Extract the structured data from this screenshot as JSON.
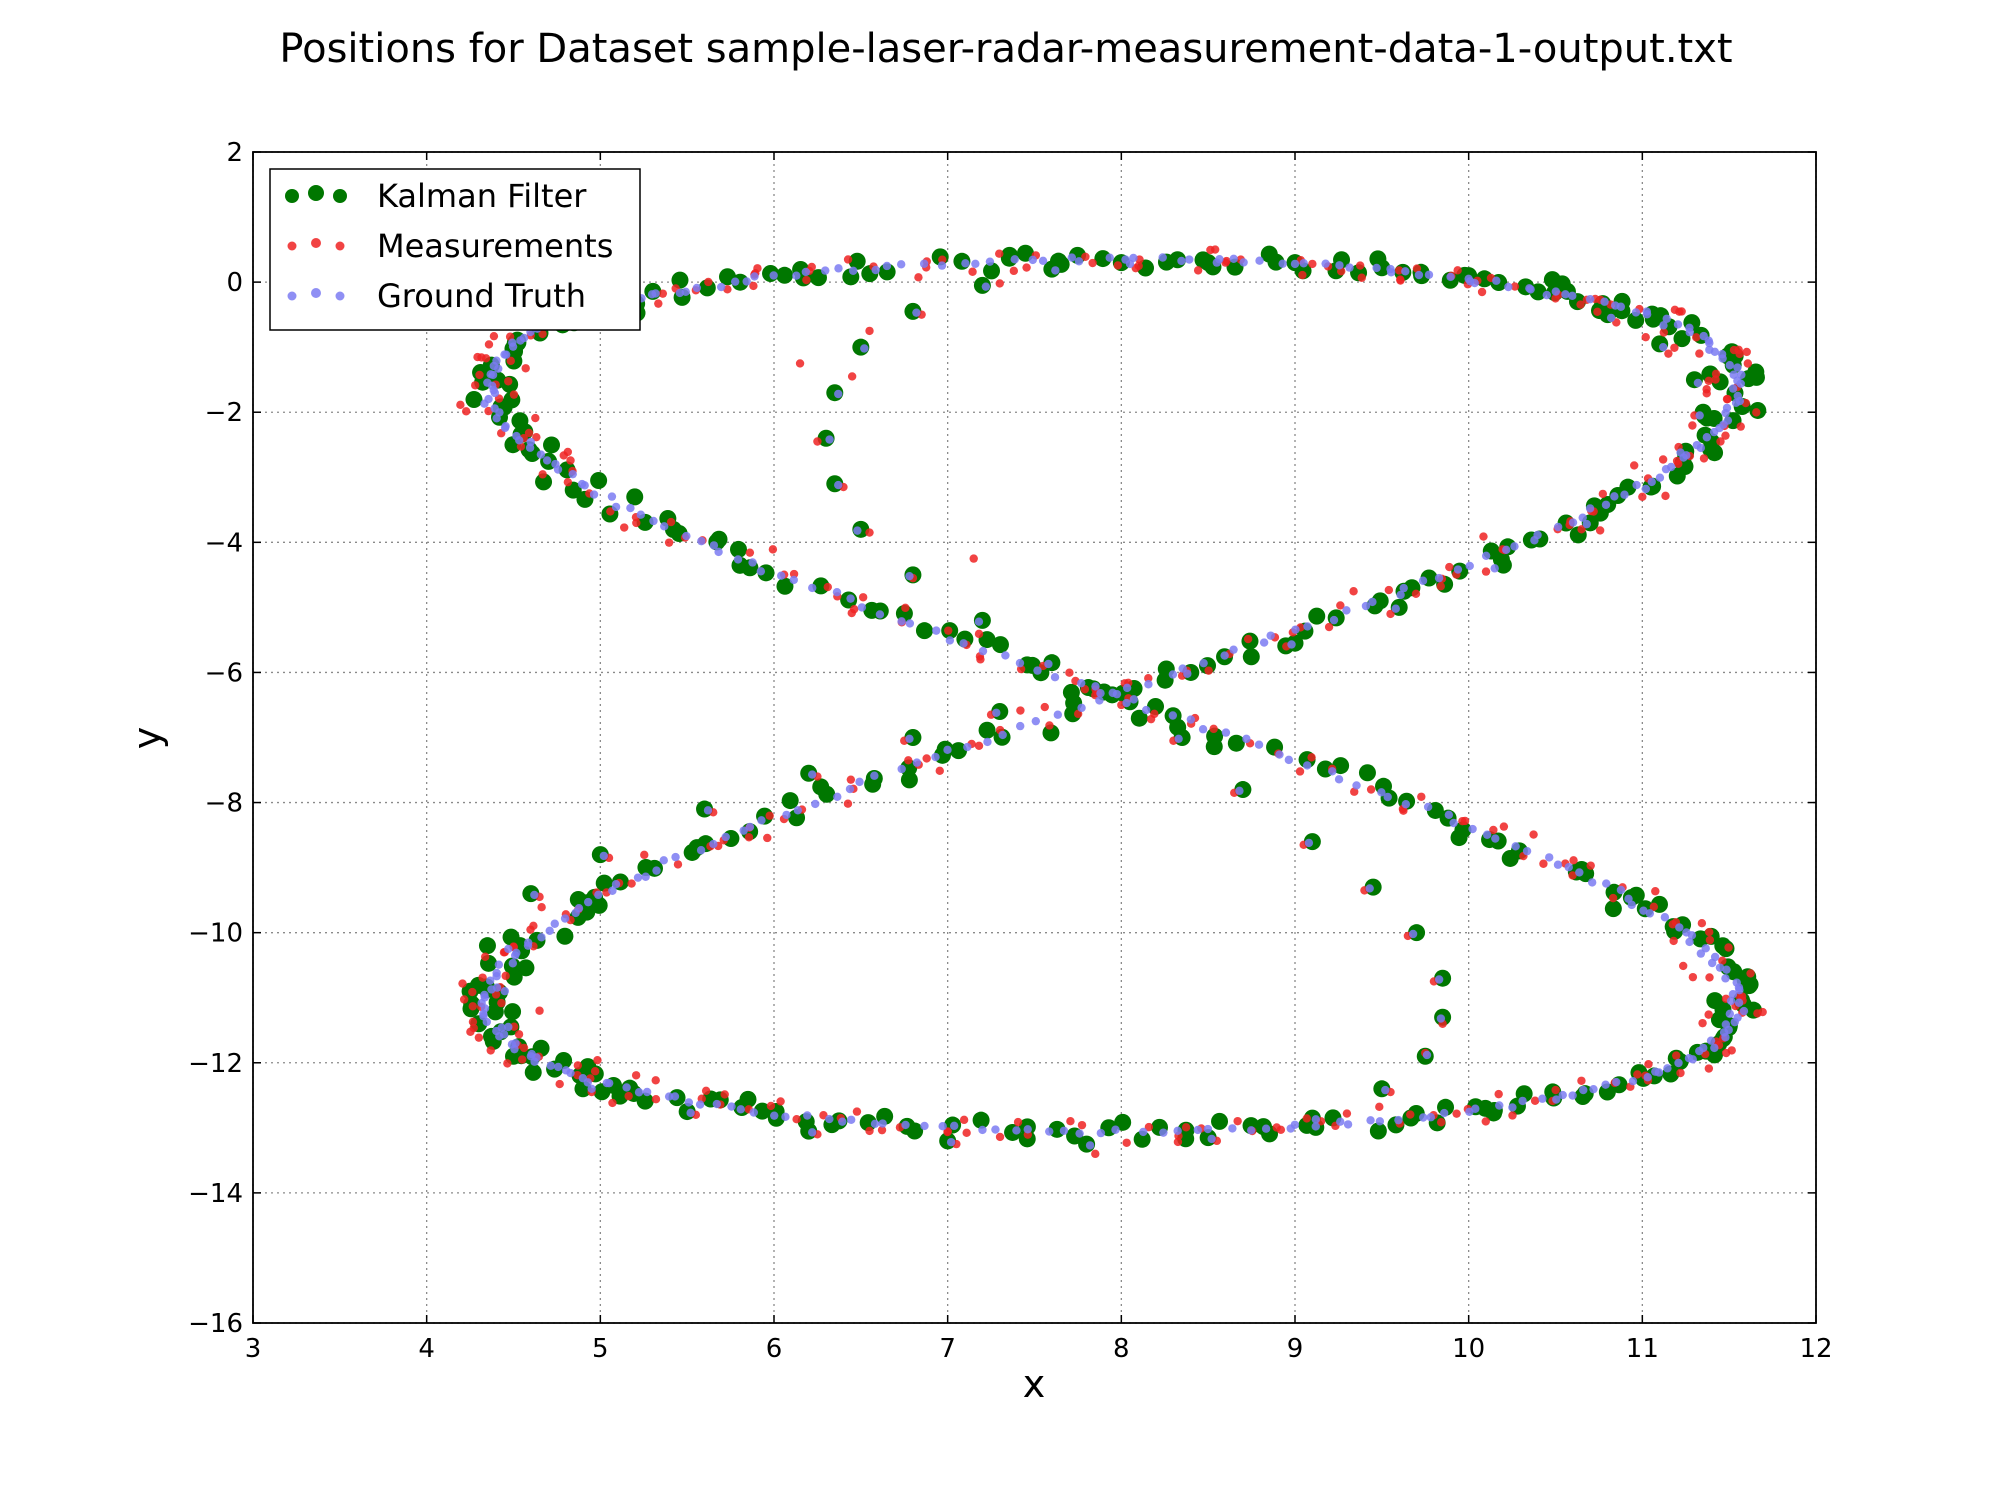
{
  "chart_data": {
    "type": "scatter",
    "title": "Positions for Dataset sample-laser-radar-measurement-data-1-output.txt",
    "xlabel": "x",
    "ylabel": "y",
    "xlim": [
      3,
      12
    ],
    "ylim": [
      -16,
      2
    ],
    "xticks": [
      3,
      4,
      5,
      6,
      7,
      8,
      9,
      10,
      11,
      12
    ],
    "yticks": [
      2,
      0,
      -2,
      -4,
      -6,
      -8,
      -10,
      -12,
      -14,
      -16
    ],
    "grid": true,
    "legend_position": "top-left",
    "curve": {
      "shape": "figure-eight",
      "center": [
        7.95,
        -6.35
      ],
      "x_amplitude": 3.6,
      "y_amplitude": 6.7,
      "dominant_side_x": "right-on-top"
    },
    "series": [
      {
        "name": "Kalman Filter",
        "color": "#007700",
        "marker": "circle-large",
        "points": [
          [
            8.0,
            0.3
          ],
          [
            8.5,
            0.3
          ],
          [
            9.0,
            0.3
          ],
          [
            9.5,
            0.22
          ],
          [
            10.0,
            0.1
          ],
          [
            10.4,
            -0.15
          ],
          [
            10.8,
            -0.5
          ],
          [
            11.1,
            -0.95
          ],
          [
            11.3,
            -1.5
          ],
          [
            11.35,
            -2.0
          ],
          [
            11.25,
            -2.6
          ],
          [
            11.05,
            -3.15
          ],
          [
            10.7,
            -3.7
          ],
          [
            10.2,
            -4.35
          ],
          [
            9.6,
            -5.0
          ],
          [
            9.0,
            -5.55
          ],
          [
            8.4,
            -6.0
          ],
          [
            7.9,
            -6.3
          ],
          [
            7.3,
            -6.6
          ],
          [
            6.8,
            -7.0
          ],
          [
            6.2,
            -7.55
          ],
          [
            5.6,
            -8.1
          ],
          [
            5.0,
            -8.8
          ],
          [
            4.6,
            -9.4
          ],
          [
            4.35,
            -10.2
          ],
          [
            4.25,
            -10.9
          ],
          [
            4.3,
            -11.4
          ],
          [
            4.5,
            -11.9
          ],
          [
            4.9,
            -12.4
          ],
          [
            5.5,
            -12.75
          ],
          [
            6.2,
            -13.05
          ],
          [
            7.0,
            -13.2
          ],
          [
            7.8,
            -13.25
          ],
          [
            8.5,
            -13.15
          ],
          [
            9.1,
            -12.85
          ],
          [
            9.5,
            -12.4
          ],
          [
            9.75,
            -11.9
          ],
          [
            9.85,
            -11.3
          ],
          [
            9.85,
            -10.7
          ],
          [
            9.7,
            -10.0
          ],
          [
            9.45,
            -9.3
          ],
          [
            9.1,
            -8.6
          ],
          [
            8.7,
            -7.8
          ],
          [
            8.35,
            -7.0
          ],
          [
            8.05,
            -6.45
          ],
          [
            7.6,
            -5.85
          ],
          [
            7.2,
            -5.2
          ],
          [
            6.8,
            -4.5
          ],
          [
            6.5,
            -3.8
          ],
          [
            6.35,
            -3.1
          ],
          [
            6.3,
            -2.4
          ],
          [
            6.35,
            -1.7
          ],
          [
            6.5,
            -1.0
          ],
          [
            6.8,
            -0.45
          ],
          [
            7.2,
            -0.05
          ],
          [
            7.6,
            0.2
          ]
        ]
      },
      {
        "name": "Measurements",
        "color": "#ee2222",
        "marker": "circle-small",
        "points": [
          [
            8.1,
            0.25
          ],
          [
            8.6,
            0.3
          ],
          [
            9.1,
            0.28
          ],
          [
            9.6,
            0.18
          ],
          [
            10.05,
            0.02
          ],
          [
            10.5,
            -0.25
          ],
          [
            10.85,
            -0.62
          ],
          [
            11.15,
            -1.1
          ],
          [
            11.45,
            -2.45
          ],
          [
            11.3,
            -2.05
          ],
          [
            11.2,
            -2.75
          ],
          [
            11.0,
            -3.3
          ],
          [
            10.65,
            -3.8
          ],
          [
            10.1,
            -4.45
          ],
          [
            9.55,
            -5.1
          ],
          [
            8.95,
            -5.6
          ],
          [
            8.35,
            -6.05
          ],
          [
            7.85,
            -6.35
          ],
          [
            7.25,
            -6.65
          ],
          [
            6.75,
            -7.05
          ],
          [
            6.25,
            -7.6
          ],
          [
            5.65,
            -8.15
          ],
          [
            5.05,
            -8.85
          ],
          [
            4.65,
            -9.45
          ],
          [
            4.45,
            -10.3
          ],
          [
            4.4,
            -10.95
          ],
          [
            4.65,
            -11.2
          ],
          [
            4.55,
            -11.95
          ],
          [
            4.95,
            -12.45
          ],
          [
            5.55,
            -12.8
          ],
          [
            6.25,
            -13.1
          ],
          [
            7.05,
            -13.25
          ],
          [
            7.85,
            -13.4
          ],
          [
            8.55,
            -13.2
          ],
          [
            9.15,
            -12.9
          ],
          [
            9.55,
            -12.45
          ],
          [
            9.75,
            -11.85
          ],
          [
            9.85,
            -11.4
          ],
          [
            9.8,
            -10.75
          ],
          [
            9.65,
            -10.05
          ],
          [
            9.4,
            -9.35
          ],
          [
            9.05,
            -8.65
          ],
          [
            8.65,
            -7.85
          ],
          [
            8.3,
            -7.05
          ],
          [
            8.0,
            -6.5
          ],
          [
            7.55,
            -5.9
          ],
          [
            7.15,
            -4.25
          ],
          [
            6.8,
            -4.55
          ],
          [
            6.55,
            -3.85
          ],
          [
            6.4,
            -3.15
          ],
          [
            6.25,
            -2.45
          ],
          [
            6.15,
            -1.25
          ],
          [
            6.45,
            -1.45
          ],
          [
            6.55,
            -0.75
          ],
          [
            6.85,
            -0.5
          ],
          [
            7.3,
            -0.02
          ]
        ]
      },
      {
        "name": "Ground Truth",
        "color": "#7b7bf2",
        "marker": "circle-small",
        "points": [
          [
            8.05,
            0.28
          ],
          [
            8.55,
            0.3
          ],
          [
            9.05,
            0.29
          ],
          [
            9.55,
            0.2
          ],
          [
            10.0,
            0.05
          ],
          [
            10.45,
            -0.2
          ],
          [
            10.82,
            -0.55
          ],
          [
            11.12,
            -1.0
          ],
          [
            11.32,
            -1.55
          ],
          [
            11.33,
            -2.05
          ],
          [
            11.22,
            -2.62
          ],
          [
            11.02,
            -3.18
          ],
          [
            10.68,
            -3.72
          ],
          [
            10.15,
            -4.4
          ],
          [
            9.58,
            -5.02
          ],
          [
            8.98,
            -5.57
          ],
          [
            8.38,
            -6.02
          ],
          [
            7.88,
            -6.32
          ],
          [
            7.28,
            -6.62
          ],
          [
            6.78,
            -7.02
          ],
          [
            6.22,
            -7.57
          ],
          [
            5.62,
            -8.12
          ],
          [
            5.02,
            -8.82
          ],
          [
            4.62,
            -9.42
          ],
          [
            4.47,
            -10.25
          ],
          [
            4.45,
            -10.9
          ],
          [
            4.47,
            -11.45
          ],
          [
            4.6,
            -11.9
          ],
          [
            4.95,
            -12.4
          ],
          [
            5.52,
            -12.77
          ],
          [
            6.22,
            -13.07
          ],
          [
            7.02,
            -13.22
          ],
          [
            7.82,
            -13.27
          ],
          [
            8.52,
            -13.17
          ],
          [
            9.12,
            -12.87
          ],
          [
            9.52,
            -12.42
          ],
          [
            9.76,
            -11.88
          ],
          [
            9.84,
            -11.32
          ],
          [
            9.83,
            -10.72
          ],
          [
            9.68,
            -10.02
          ],
          [
            9.43,
            -9.32
          ],
          [
            9.08,
            -8.62
          ],
          [
            8.68,
            -7.82
          ],
          [
            8.33,
            -7.02
          ],
          [
            8.03,
            -6.47
          ],
          [
            7.58,
            -5.87
          ],
          [
            7.18,
            -5.22
          ],
          [
            6.78,
            -4.52
          ],
          [
            6.48,
            -3.82
          ],
          [
            6.37,
            -3.12
          ],
          [
            6.32,
            -2.42
          ],
          [
            6.37,
            -1.72
          ],
          [
            6.52,
            -1.02
          ],
          [
            6.82,
            -0.47
          ],
          [
            7.22,
            -0.07
          ],
          [
            7.62,
            0.18
          ]
        ]
      }
    ]
  }
}
